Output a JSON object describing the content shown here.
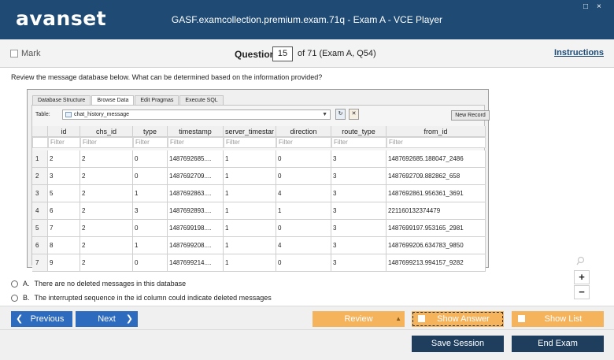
{
  "app": {
    "logo": "avanset",
    "window_title": "GASF.examcollection.premium.exam.71q - Exam A - VCE Player",
    "window_controls": [
      "□",
      "×"
    ]
  },
  "header": {
    "mark_label": "Mark",
    "question_label": "Question",
    "question_number": "15",
    "question_of": "of 71 (Exam A, Q54)",
    "instructions_label": "Instructions"
  },
  "question": {
    "text": "Review the message database below. What can be determined based on the information provided?"
  },
  "db": {
    "tabs": [
      "Database Structure",
      "Browse Data",
      "Edit Pragmas",
      "Execute SQL"
    ],
    "active_tab": "Browse Data",
    "table_label": "Table:",
    "table_name": "chat_history_message",
    "new_record_label": "New Record",
    "columns": [
      "id",
      "chs_id",
      "type",
      "timestamp",
      "server_timestar",
      "direction",
      "route_type",
      "from_id"
    ],
    "filter_placeholder": "Filter",
    "rows": [
      [
        "1",
        "2",
        "2",
        "0",
        "1487692685....",
        "1",
        "0",
        "3",
        "1487692685.188047_2486"
      ],
      [
        "2",
        "3",
        "2",
        "0",
        "1487692709....",
        "1",
        "0",
        "3",
        "1487692709.882862_658"
      ],
      [
        "3",
        "5",
        "2",
        "1",
        "1487692863....",
        "1",
        "4",
        "3",
        "1487692861.956361_3691"
      ],
      [
        "4",
        "6",
        "2",
        "3",
        "1487692893....",
        "1",
        "1",
        "3",
        "221160132374479"
      ],
      [
        "5",
        "7",
        "2",
        "0",
        "1487699198....",
        "1",
        "0",
        "3",
        "1487699197.953165_2981"
      ],
      [
        "6",
        "8",
        "2",
        "1",
        "1487699208....",
        "1",
        "4",
        "3",
        "1487699206.634783_9850"
      ],
      [
        "7",
        "9",
        "2",
        "0",
        "1487699214....",
        "1",
        "0",
        "3",
        "1487699213.994157_9282"
      ]
    ]
  },
  "answers": [
    {
      "letter": "A.",
      "text": "There are no deleted messages in this database"
    },
    {
      "letter": "B.",
      "text": "The interrupted sequence in the id column could indicate deleted messages"
    }
  ],
  "zoom": {
    "in": "+",
    "out": "−"
  },
  "nav": {
    "previous_label": "Previous",
    "next_label": "Next",
    "review_label": "Review",
    "show_answer_label": "Show Answer",
    "show_list_label": "Show List"
  },
  "actions": {
    "save_session_label": "Save Session",
    "end_exam_label": "End Exam"
  },
  "colors": {
    "titlebar": "#1e4a73",
    "nav_blue": "#2c6bbd",
    "orange": "#f5b45c",
    "dark_button": "#1f3e5e"
  }
}
